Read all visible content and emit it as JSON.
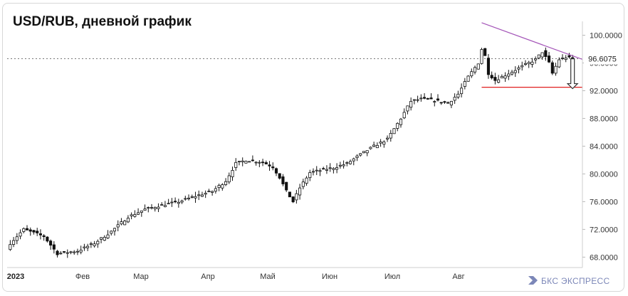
{
  "chart_data": {
    "type": "candlestick",
    "title": "USD/RUB, дневной график",
    "x_ticks": [
      "2023",
      "Фев",
      "Мар",
      "Апр",
      "Май",
      "Июн",
      "Июл",
      "Авг"
    ],
    "y_ticks": [
      "100.0000",
      "96.0000",
      "92.0000",
      "88.0000",
      "84.0000",
      "80.0000",
      "76.0000",
      "72.0000",
      "68.0000"
    ],
    "ylim": [
      66.5,
      102.0
    ],
    "current_price": "96.6075",
    "grid": false,
    "colors": {
      "bull": "#ffffff",
      "bear": "#111111",
      "resistance": "#a455b8",
      "support": "#e02020",
      "grid_dash": "#777777"
    },
    "close_path": [
      [
        0,
        70.0
      ],
      [
        4,
        72.0
      ],
      [
        10,
        71.0
      ],
      [
        14,
        68.5
      ],
      [
        20,
        68.9
      ],
      [
        25,
        70.0
      ],
      [
        30,
        71.7
      ],
      [
        35,
        73.8
      ],
      [
        40,
        74.9
      ],
      [
        45,
        75.5
      ],
      [
        50,
        76.0
      ],
      [
        55,
        76.8
      ],
      [
        60,
        77.5
      ],
      [
        64,
        79.0
      ],
      [
        67,
        81.5
      ],
      [
        70,
        82.0
      ],
      [
        75,
        81.7
      ],
      [
        78,
        81.0
      ],
      [
        80,
        79.5
      ],
      [
        82,
        77.5
      ],
      [
        84,
        76.0
      ],
      [
        86,
        78.0
      ],
      [
        89,
        80.2
      ],
      [
        92,
        80.5
      ],
      [
        96,
        80.9
      ],
      [
        100,
        81.5
      ],
      [
        104,
        82.8
      ],
      [
        108,
        84.0
      ],
      [
        112,
        85.0
      ],
      [
        116,
        88.0
      ],
      [
        119,
        90.5
      ],
      [
        122,
        90.8
      ],
      [
        126,
        90.6
      ],
      [
        130,
        90.2
      ],
      [
        133,
        91.5
      ],
      [
        136,
        94.0
      ],
      [
        139,
        96.0
      ],
      [
        140,
        98.0
      ],
      [
        141,
        97.0
      ],
      [
        142,
        94.5
      ],
      [
        144,
        93.5
      ],
      [
        148,
        94.5
      ],
      [
        152,
        95.5
      ],
      [
        156,
        96.5
      ],
      [
        158,
        97.6
      ],
      [
        160,
        96.0
      ],
      [
        161,
        94.5
      ],
      [
        163,
        96.5
      ],
      [
        165,
        96.8
      ],
      [
        167,
        96.6075
      ]
    ],
    "annotations": {
      "resistance_line": {
        "from": [
          140,
          101.8
        ],
        "to": [
          170,
          96.5
        ]
      },
      "support_line": {
        "from": [
          140,
          92.5
        ],
        "to": [
          170,
          92.5
        ]
      },
      "down_arrow": {
        "at": 167,
        "from": 96.6,
        "to": 92.3
      }
    }
  },
  "brand": {
    "name": "БКС ЭКСПРЕСС"
  }
}
